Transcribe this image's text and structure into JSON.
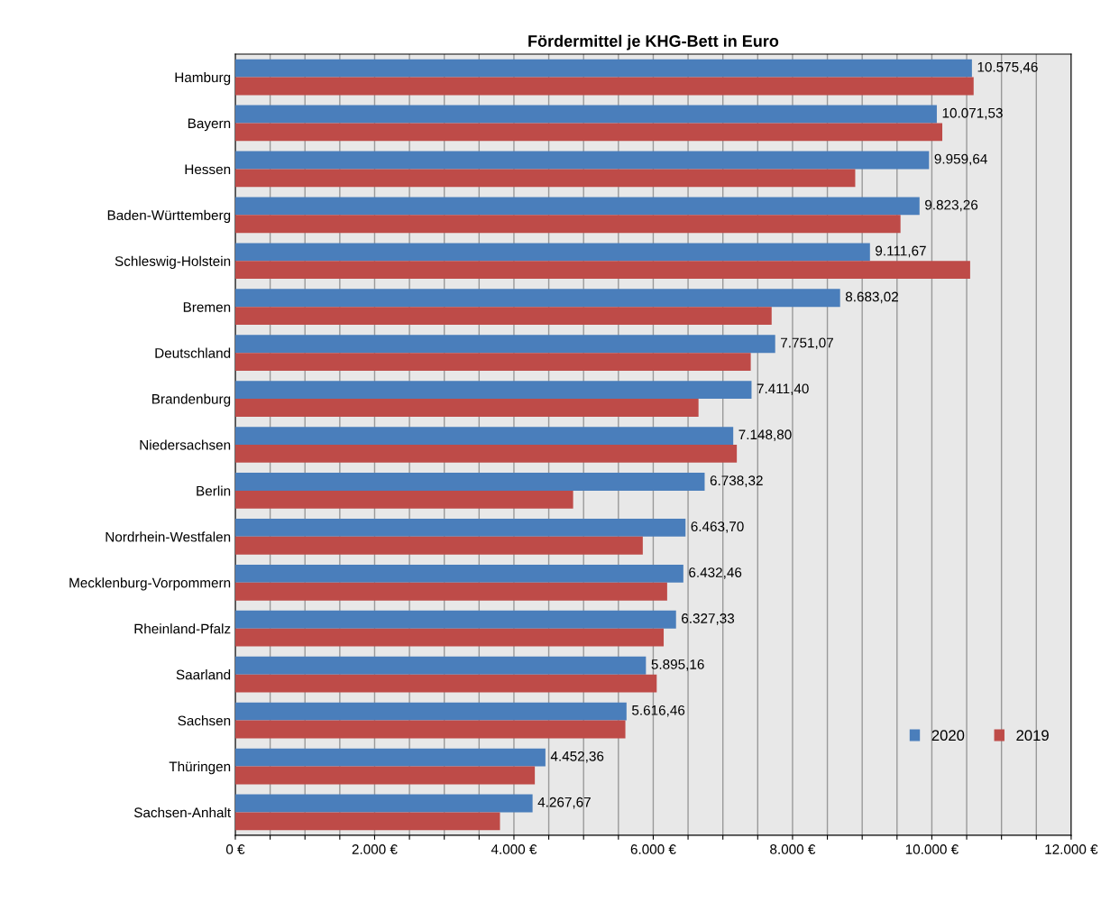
{
  "chart_data": {
    "type": "bar",
    "orientation": "horizontal",
    "title": "Fördermittel je KHG-Bett in Euro",
    "categories": [
      "Hamburg",
      "Bayern",
      "Hessen",
      "Baden-Württemberg",
      "Schleswig-Holstein",
      "Bremen",
      "Deutschland",
      "Brandenburg",
      "Niedersachsen",
      "Berlin",
      "Nordrhein-Westfalen",
      "Mecklenburg-Vorpommern",
      "Rheinland-Pfalz",
      "Saarland",
      "Sachsen",
      "Thüringen",
      "Sachsen-Anhalt"
    ],
    "series": [
      {
        "name": "2020",
        "color": "#4a7ebb",
        "values": [
          10575.46,
          10071.53,
          9959.64,
          9823.26,
          9111.67,
          8683.02,
          7751.07,
          7411.4,
          7148.8,
          6738.32,
          6463.7,
          6432.46,
          6327.33,
          5895.16,
          5616.46,
          4452.36,
          4267.67
        ],
        "value_labels": [
          "10.575,46",
          "10.071,53",
          "9.959,64",
          "9.823,26",
          "9.111,67",
          "8.683,02",
          "7.751,07",
          "7.411,40",
          "7.148,80",
          "6.738,32",
          "6.463,70",
          "6.432,46",
          "6.327,33",
          "5.895,16",
          "5.616,46",
          "4.452,36",
          "4.267,67"
        ]
      },
      {
        "name": "2019",
        "color": "#be4b48",
        "values": [
          10600,
          10150,
          8900,
          9550,
          10550,
          7700,
          7400,
          6650,
          7200,
          4850,
          5850,
          6200,
          6150,
          6050,
          5600,
          4300,
          3800
        ]
      }
    ],
    "xlim": [
      0,
      12000
    ],
    "xticks": [
      {
        "value": 0,
        "label": "0 €"
      },
      {
        "value": 500,
        "label": null
      },
      {
        "value": 1000,
        "label": null
      },
      {
        "value": 1500,
        "label": null
      },
      {
        "value": 2000,
        "label": "2.000 €"
      },
      {
        "value": 2500,
        "label": null
      },
      {
        "value": 3000,
        "label": null
      },
      {
        "value": 3500,
        "label": null
      },
      {
        "value": 4000,
        "label": "4.000 €"
      },
      {
        "value": 4500,
        "label": null
      },
      {
        "value": 5000,
        "label": null
      },
      {
        "value": 5500,
        "label": null
      },
      {
        "value": 6000,
        "label": "6.000 €"
      },
      {
        "value": 6500,
        "label": null
      },
      {
        "value": 7000,
        "label": null
      },
      {
        "value": 7500,
        "label": null
      },
      {
        "value": 8000,
        "label": "8.000 €"
      },
      {
        "value": 8500,
        "label": null
      },
      {
        "value": 9000,
        "label": null
      },
      {
        "value": 9500,
        "label": null
      },
      {
        "value": 10000,
        "label": "10.000 €"
      },
      {
        "value": 10500,
        "label": null
      },
      {
        "value": 11000,
        "label": null
      },
      {
        "value": 11500,
        "label": null
      },
      {
        "value": 12000,
        "label": "12.000 €"
      }
    ],
    "grid": "x",
    "legend": "bottom right"
  }
}
